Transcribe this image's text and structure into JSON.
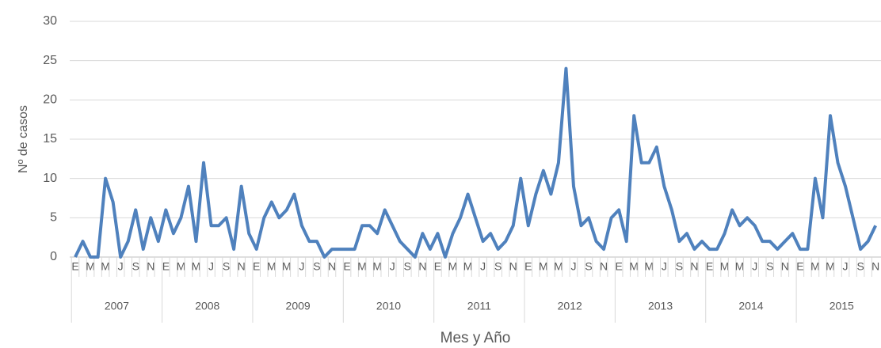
{
  "chart_data": {
    "type": "line",
    "y_axis_label": "Nº de casos",
    "x_axis_label": "Mes y Año",
    "categories": [
      "E",
      null,
      "M",
      null,
      "M",
      null,
      "J",
      null,
      "S",
      null,
      "N",
      null,
      "E",
      null,
      "M",
      null,
      "M",
      null,
      "J",
      null,
      "S",
      null,
      "N",
      null,
      "E",
      null,
      "M",
      null,
      "M",
      null,
      "J",
      null,
      "S",
      null,
      "N",
      null,
      "E",
      null,
      "M",
      null,
      "M",
      null,
      "J",
      null,
      "S",
      null,
      "N",
      null,
      "E",
      null,
      "M",
      null,
      "M",
      null,
      "J",
      null,
      "S",
      null,
      "N",
      null,
      "E",
      null,
      "M",
      null,
      "M",
      null,
      "J",
      null,
      "S",
      null,
      "N",
      null,
      "E",
      null,
      "M",
      null,
      "M",
      null,
      "J",
      null,
      "S",
      null,
      "N",
      null,
      "E",
      null,
      "M",
      null,
      "M",
      null,
      "J",
      null,
      "S",
      null,
      "N",
      null,
      "E",
      null,
      "M",
      null,
      "M",
      null,
      "J",
      null,
      "S",
      null,
      "N"
    ],
    "year_groups": [
      "2007",
      "2008",
      "2009",
      "2010",
      "2011",
      "2012",
      "2013",
      "2014",
      "2015"
    ],
    "series": [
      {
        "name": "Nº de casos",
        "color": "#4f81bd",
        "values": [
          0,
          2,
          0,
          0,
          10,
          7,
          0,
          2,
          6,
          1,
          5,
          2,
          6,
          3,
          5,
          9,
          2,
          12,
          4,
          4,
          5,
          1,
          9,
          3,
          1,
          5,
          7,
          5,
          6,
          8,
          4,
          2,
          2,
          0,
          1,
          1,
          1,
          1,
          4,
          4,
          3,
          6,
          4,
          2,
          1,
          0,
          3,
          1,
          3,
          0,
          3,
          5,
          8,
          5,
          2,
          3,
          1,
          2,
          4,
          10,
          4,
          8,
          11,
          8,
          12,
          24,
          9,
          4,
          5,
          2,
          1,
          5,
          6,
          2,
          18,
          12,
          12,
          14,
          9,
          6,
          2,
          3,
          1,
          2,
          1,
          1,
          3,
          6,
          4,
          5,
          4,
          2,
          2,
          1,
          2,
          3,
          1,
          1,
          10,
          5,
          18,
          12,
          9,
          5,
          1,
          2,
          4
        ]
      }
    ],
    "ylim": [
      0,
      30
    ],
    "yticks": [
      0,
      5,
      10,
      15,
      20,
      25,
      30
    ],
    "grid": true
  }
}
